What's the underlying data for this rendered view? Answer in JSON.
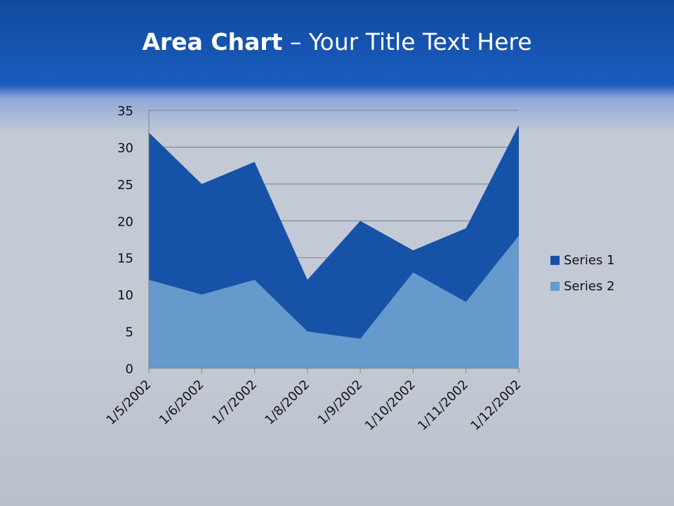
{
  "title": {
    "bold": "Area Chart",
    "rest": " – Your Title Text Here"
  },
  "chart_data": {
    "type": "area",
    "categories": [
      "1/5/2002",
      "1/6/2002",
      "1/7/2002",
      "1/8/2002",
      "1/9/2002",
      "1/10/2002",
      "1/11/2002",
      "1/12/2002"
    ],
    "series": [
      {
        "name": "Series 1",
        "values": [
          32,
          25,
          28,
          12,
          20,
          16,
          19,
          33
        ],
        "color": "#1652a8"
      },
      {
        "name": "Series 2",
        "values": [
          12,
          10,
          12,
          5,
          4,
          13,
          9,
          18
        ],
        "color": "#6699cc"
      }
    ],
    "ylim": [
      0,
      35
    ],
    "yticks": [
      0,
      5,
      10,
      15,
      20,
      25,
      30,
      35
    ],
    "grid": true,
    "legend": "right"
  }
}
